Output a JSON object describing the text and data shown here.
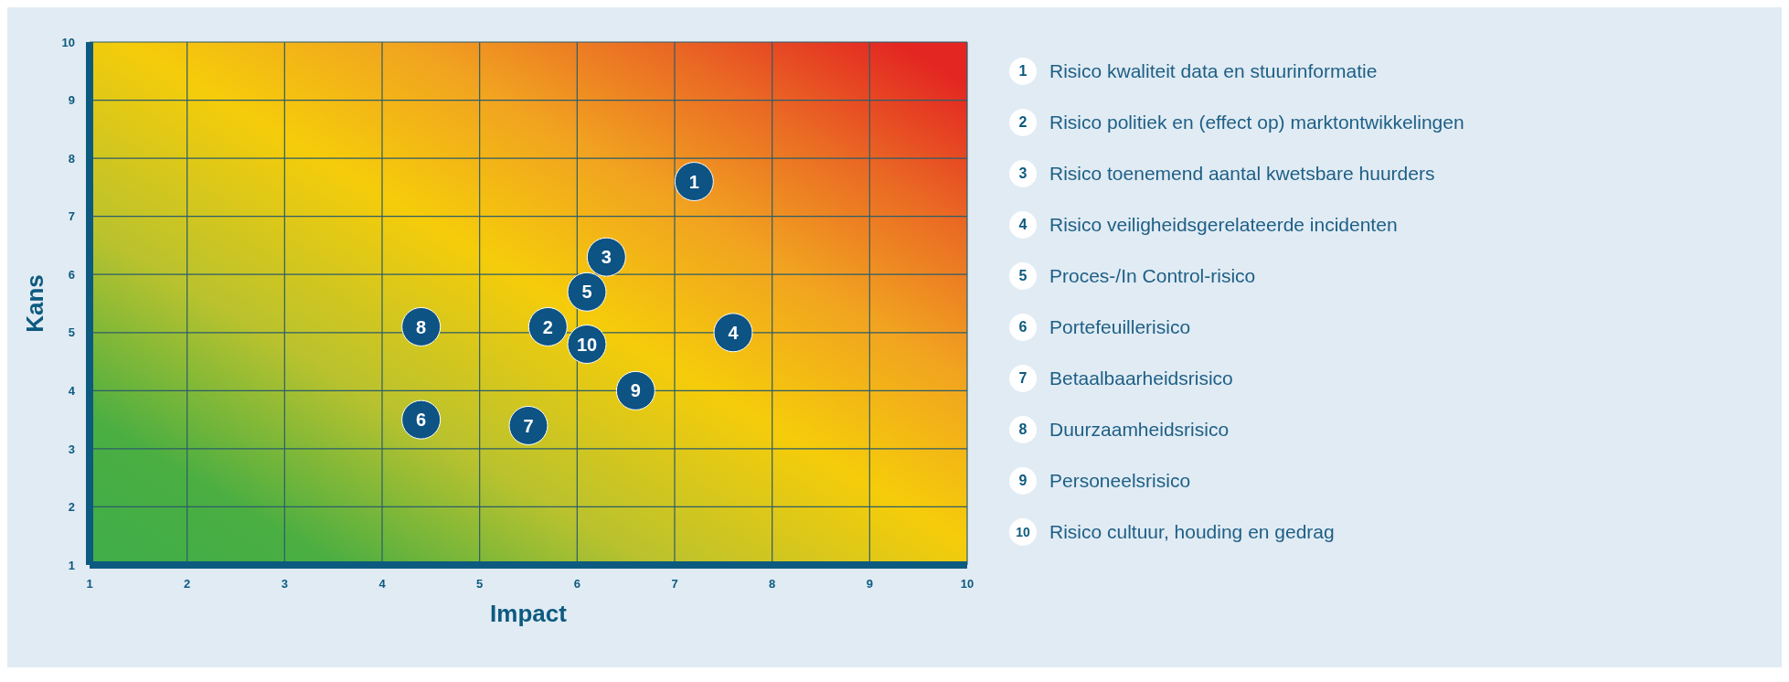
{
  "chart_data": {
    "type": "scatter",
    "xlabel": "Impact",
    "ylabel": "Kans",
    "xlim": [
      1,
      10
    ],
    "xticks": [
      1,
      2,
      3,
      4,
      5,
      6,
      7,
      8,
      9,
      10
    ],
    "ylim": [
      1,
      10
    ],
    "yticks": [
      1,
      2,
      3,
      4,
      5,
      6,
      7,
      8,
      9,
      10
    ],
    "grid": true,
    "marker": "circle",
    "series": [
      {
        "color": "#0d5384",
        "x": [
          7.2,
          5.7,
          6.3,
          7.6,
          6.1,
          4.4,
          5.5,
          4.4,
          6.6,
          6.1
        ],
        "values": [
          7.6,
          5.1,
          6.3,
          5.0,
          5.7,
          3.5,
          3.4,
          5.1,
          4.0,
          4.8
        ]
      }
    ],
    "annotations": [
      {
        "text": "1",
        "x": 7.2,
        "y": 7.6
      },
      {
        "text": "2",
        "x": 5.7,
        "y": 5.1
      },
      {
        "text": "3",
        "x": 6.3,
        "y": 6.3
      },
      {
        "text": "4",
        "x": 7.6,
        "y": 5.0
      },
      {
        "text": "5",
        "x": 6.1,
        "y": 5.7
      },
      {
        "text": "6",
        "x": 4.4,
        "y": 3.5
      },
      {
        "text": "7",
        "x": 5.5,
        "y": 3.4
      },
      {
        "text": "8",
        "x": 4.4,
        "y": 5.1
      },
      {
        "text": "9",
        "x": 6.6,
        "y": 4.0
      },
      {
        "text": "10",
        "x": 6.1,
        "y": 4.8
      },
      "Risico kwaliteit data en stuurinformatie",
      "Risico politiek en (effect op) marktontwikkelingen",
      "Risico toenemend aantal kwetsbare huurders",
      "Risico veiligheidsgerelateerde incidenten",
      "Proces-/In Control-risico",
      "Portefeuillerisico",
      "Betaalbaarheidsrisico",
      "Duurzaamheidsrisico",
      "Personeelsrisico",
      "Risico cultuur, houding en gedrag"
    ]
  }
}
